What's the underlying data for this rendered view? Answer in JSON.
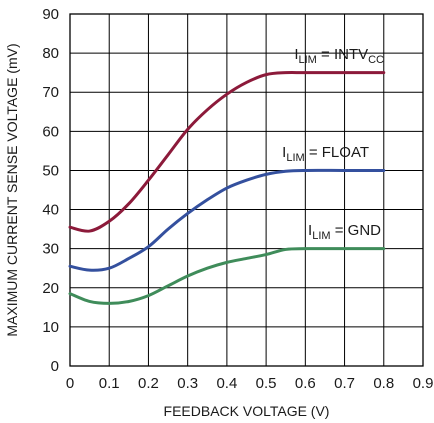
{
  "chart_data": {
    "type": "line",
    "title": "",
    "xlabel": "FEEDBACK VOLTAGE (V)",
    "ylabel": "MAXIMUM CURRENT SENSE VOLTAGE (mV)",
    "xlim": [
      0,
      0.9
    ],
    "ylim": [
      0,
      90
    ],
    "x_ticks": [
      "0",
      "0.1",
      "0.2",
      "0.3",
      "0.4",
      "0.5",
      "0.6",
      "0.7",
      "0.8",
      "0.9"
    ],
    "y_ticks": [
      "0",
      "10",
      "20",
      "30",
      "40",
      "50",
      "60",
      "70",
      "80",
      "90"
    ],
    "grid": true,
    "series": [
      {
        "name": "ILIM = INTVCC",
        "label_parts": [
          {
            "text": "I",
            "sub": false
          },
          {
            "text": "LIM",
            "sub": true
          },
          {
            "text": " = INTV",
            "sub": false
          },
          {
            "text": "CC",
            "sub": true
          }
        ],
        "color": "#8c1a3a",
        "x": [
          0,
          0.05,
          0.1,
          0.15,
          0.2,
          0.25,
          0.3,
          0.35,
          0.4,
          0.45,
          0.5,
          0.55,
          0.6,
          0.7,
          0.8
        ],
        "values": [
          35.5,
          34.5,
          37,
          41.5,
          47.5,
          54,
          60.5,
          65.5,
          69.5,
          72.5,
          74.5,
          75,
          75,
          75,
          75
        ]
      },
      {
        "name": "ILIM = FLOAT",
        "label_parts": [
          {
            "text": "I",
            "sub": false
          },
          {
            "text": "LIM",
            "sub": true
          },
          {
            "text": " = FLOAT",
            "sub": false
          }
        ],
        "color": "#34509e",
        "x": [
          0,
          0.05,
          0.1,
          0.15,
          0.2,
          0.25,
          0.3,
          0.35,
          0.4,
          0.45,
          0.5,
          0.55,
          0.6,
          0.7,
          0.8
        ],
        "values": [
          25.5,
          24.5,
          25,
          27.5,
          30.5,
          35,
          39,
          42.5,
          45.5,
          47.5,
          49,
          49.8,
          50,
          50,
          50
        ]
      },
      {
        "name": "ILIM = GND",
        "label_parts": [
          {
            "text": "I",
            "sub": false
          },
          {
            "text": "LIM",
            "sub": true
          },
          {
            "text": " = GND",
            "sub": false
          }
        ],
        "color": "#3f8c5a",
        "x": [
          0,
          0.05,
          0.1,
          0.15,
          0.2,
          0.25,
          0.3,
          0.35,
          0.4,
          0.45,
          0.5,
          0.55,
          0.6,
          0.7,
          0.8
        ],
        "values": [
          18.5,
          16.5,
          16,
          16.5,
          18,
          20.5,
          23,
          25,
          26.5,
          27.5,
          28.5,
          29.8,
          30,
          30,
          30
        ]
      }
    ]
  }
}
